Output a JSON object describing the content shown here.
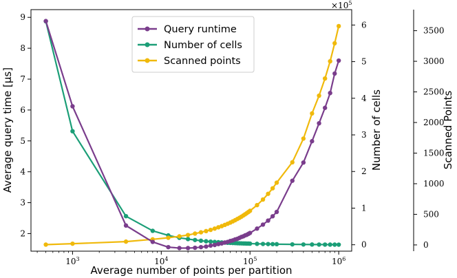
{
  "chart_data": {
    "type": "line",
    "title": "",
    "xlabel": "Average number of points per partition",
    "x_scale": "log",
    "xlim": [
      340,
      1400000
    ],
    "x_ticks": [
      {
        "value": 1000,
        "label": "10",
        "exp": "3"
      },
      {
        "value": 10000,
        "label": "10",
        "exp": "4"
      },
      {
        "value": 100000,
        "label": "10",
        "exp": "5"
      },
      {
        "value": 1000000,
        "label": "10",
        "exp": "6"
      }
    ],
    "axes": {
      "left": {
        "label": "Average query time [µs]",
        "ylim": [
          1.43,
          9.25
        ],
        "ticks": [
          2,
          3,
          4,
          5,
          6,
          7,
          8,
          9
        ],
        "color": "#000000"
      },
      "right1": {
        "label": "Number of cells",
        "multiplier": "×10",
        "multiplier_exp": "5",
        "ylim": [
          -17500,
          642000
        ],
        "ticks": [
          0,
          100000,
          200000,
          300000,
          400000,
          500000,
          600000
        ],
        "tick_labels": [
          "0",
          "1",
          "2",
          "3",
          "4",
          "5",
          "6"
        ],
        "color": "#000000"
      },
      "right2": {
        "label": "Scanned Points",
        "ylim": [
          -102,
          3844
        ],
        "ticks": [
          0,
          500,
          1000,
          1500,
          2000,
          2500,
          3000,
          3500
        ],
        "color": "#000000"
      }
    },
    "legend": {
      "position": "top-center"
    },
    "series": [
      {
        "name": "Query runtime",
        "color": "#7a3d8c",
        "axis": "left",
        "x": [
          500,
          1000,
          4000,
          8000,
          12000,
          16000,
          20000,
          24000,
          28000,
          32000,
          36000,
          40000,
          44000,
          48000,
          52000,
          56000,
          60000,
          64000,
          68000,
          72000,
          76000,
          80000,
          84000,
          88000,
          92000,
          96000,
          100000,
          120000,
          140000,
          160000,
          180000,
          200000,
          300000,
          400000,
          500000,
          600000,
          700000,
          800000,
          900000,
          1000000
        ],
        "values": [
          8.88,
          6.12,
          2.26,
          1.73,
          1.56,
          1.53,
          1.53,
          1.54,
          1.56,
          1.58,
          1.61,
          1.63,
          1.66,
          1.68,
          1.71,
          1.73,
          1.76,
          1.78,
          1.81,
          1.83,
          1.86,
          1.89,
          1.91,
          1.94,
          1.96,
          1.99,
          2.02,
          2.16,
          2.29,
          2.42,
          2.56,
          2.7,
          3.71,
          4.3,
          4.99,
          5.57,
          6.07,
          6.55,
          7.18,
          7.6
        ]
      },
      {
        "name": "Number of cells",
        "color": "#1b9e77",
        "axis": "right1",
        "x": [
          500,
          1000,
          4000,
          8000,
          12000,
          16000,
          20000,
          24000,
          28000,
          32000,
          36000,
          40000,
          44000,
          48000,
          52000,
          56000,
          60000,
          64000,
          68000,
          72000,
          76000,
          80000,
          84000,
          88000,
          92000,
          96000,
          100000,
          120000,
          140000,
          160000,
          180000,
          200000,
          300000,
          400000,
          500000,
          600000,
          700000,
          800000,
          900000,
          1000000
        ],
        "values": [
          610000,
          310000,
          78000,
          38000,
          25500,
          19000,
          15500,
          13000,
          11000,
          9500,
          8500,
          7700,
          7000,
          6400,
          5900,
          5400,
          5100,
          4800,
          4500,
          4200,
          4000,
          3800,
          3600,
          3500,
          3300,
          3200,
          3050,
          2550,
          2200,
          1900,
          1700,
          1550,
          1000,
          770,
          610,
          510,
          440,
          380,
          340,
          310
        ]
      },
      {
        "name": "Scanned points",
        "color": "#f0b90b",
        "axis": "right2",
        "x": [
          500,
          1000,
          4000,
          8000,
          12000,
          16000,
          20000,
          24000,
          28000,
          32000,
          36000,
          40000,
          44000,
          48000,
          52000,
          56000,
          60000,
          64000,
          68000,
          72000,
          76000,
          80000,
          84000,
          88000,
          92000,
          96000,
          100000,
          120000,
          140000,
          160000,
          180000,
          200000,
          300000,
          400000,
          500000,
          600000,
          700000,
          800000,
          900000,
          1000000
        ],
        "values": [
          5,
          20,
          54,
          91,
          117,
          140,
          162,
          185,
          206,
          226,
          246,
          267,
          288,
          307,
          327,
          346,
          365,
          385,
          404,
          424,
          442,
          461,
          481,
          500,
          519,
          538,
          557,
          650,
          742,
          835,
          925,
          1017,
          1350,
          1737,
          2148,
          2438,
          2719,
          3000,
          3294,
          3575
        ]
      }
    ]
  }
}
